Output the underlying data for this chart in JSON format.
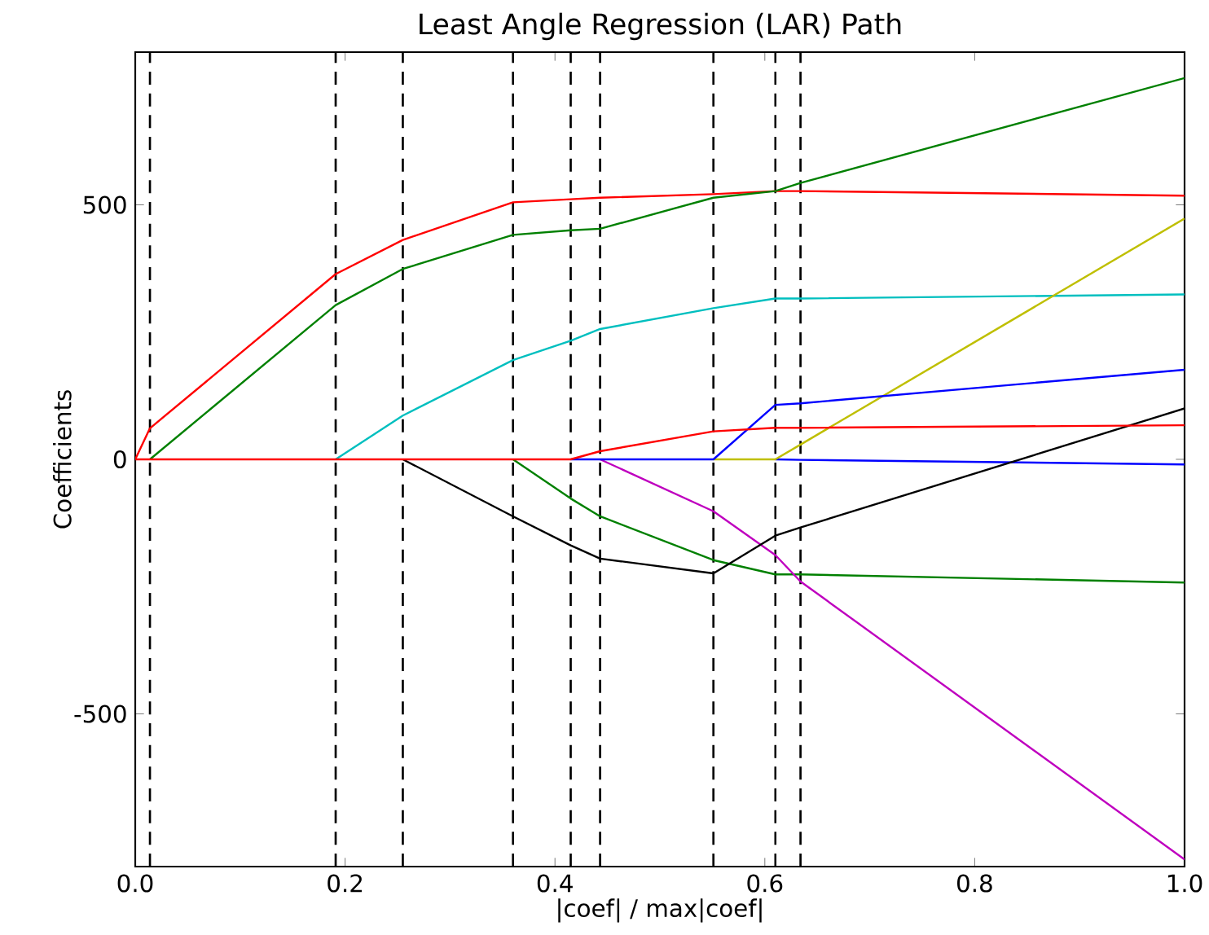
{
  "chart_data": {
    "type": "line",
    "title": "Least Angle Regression (LAR) Path",
    "xlabel": "|coef| / max|coef|",
    "ylabel": "Coefficients",
    "x": [
      0,
      0.014,
      0.191,
      0.255,
      0.36,
      0.415,
      0.443,
      0.551,
      0.61,
      0.634,
      1.0
    ],
    "series": [
      {
        "color": "#0000ff",
        "values": [
          null,
          null,
          null,
          null,
          null,
          null,
          null,
          null,
          0,
          -1,
          -10
        ]
      },
      {
        "color": "#008000",
        "values": [
          null,
          null,
          null,
          null,
          0,
          -77,
          -112,
          -198,
          -226,
          -226,
          -242
        ]
      },
      {
        "color": "#ff0000",
        "values": [
          0,
          61,
          364,
          431,
          505,
          511,
          514,
          521,
          527,
          527,
          518
        ]
      },
      {
        "color": "#00bfbf",
        "values": [
          null,
          null,
          0,
          86,
          195,
          233,
          256,
          297,
          316,
          316,
          324
        ]
      },
      {
        "color": "#bf00bf",
        "values": [
          null,
          null,
          null,
          null,
          null,
          null,
          0,
          -102,
          -188,
          -240,
          -786
        ]
      },
      {
        "color": "#bfbf00",
        "values": [
          null,
          null,
          null,
          null,
          null,
          null,
          null,
          0,
          0,
          29,
          473
        ]
      },
      {
        "color": "#000000",
        "values": [
          null,
          null,
          null,
          0,
          -112,
          -169,
          -195,
          -224,
          -150,
          -134,
          100
        ]
      },
      {
        "color": "#0000ff",
        "values": [
          null,
          null,
          null,
          null,
          null,
          0,
          0,
          0,
          107,
          110,
          176
        ]
      },
      {
        "color": "#008000",
        "values": [
          null,
          0,
          303,
          374,
          441,
          450,
          453,
          514,
          527,
          543,
          749
        ]
      },
      {
        "color": "#ff0000",
        "values": [
          0,
          0,
          0,
          0,
          0,
          0,
          16,
          55,
          62,
          62,
          67
        ]
      }
    ],
    "xlim": [
      0,
      1
    ],
    "ylim": [
      -800,
      800
    ],
    "xticks": [
      {
        "value": 0,
        "label": "0.0"
      },
      0.2,
      0.4,
      0.6,
      0.8,
      {
        "value": 1,
        "label": "1.0"
      }
    ],
    "yticks": [
      -500,
      0,
      500
    ],
    "ref_lines": [
      {
        "axis": "x",
        "value": 0.014,
        "color": "#000000",
        "line_style": "dashed"
      },
      {
        "axis": "x",
        "value": 0.191,
        "color": "#000000",
        "line_style": "dashed"
      },
      {
        "axis": "x",
        "value": 0.255,
        "color": "#000000",
        "line_style": "dashed"
      },
      {
        "axis": "x",
        "value": 0.36,
        "color": "#000000",
        "line_style": "dashed"
      },
      {
        "axis": "x",
        "value": 0.415,
        "color": "#000000",
        "line_style": "dashed"
      },
      {
        "axis": "x",
        "value": 0.443,
        "color": "#000000",
        "line_style": "dashed"
      },
      {
        "axis": "x",
        "value": 0.551,
        "color": "#000000",
        "line_style": "dashed"
      },
      {
        "axis": "x",
        "value": 0.61,
        "color": "#000000",
        "line_style": "dashed"
      },
      {
        "axis": "x",
        "value": 0.634,
        "color": "#000000",
        "line_style": "dashed"
      }
    ]
  }
}
